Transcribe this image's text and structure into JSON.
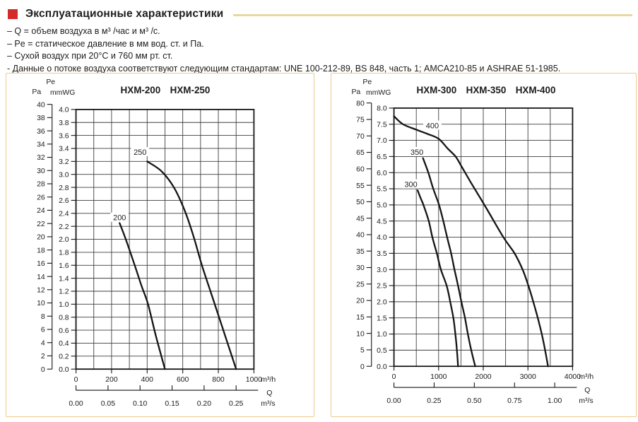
{
  "header": {
    "title": "Эксплуатационные характеристики",
    "accent_color": "#d42a2a",
    "rule_color": "#e9d6a2",
    "bullets": [
      "– Q = объем воздуха в м³ /час и м³ /с.",
      "– Pe = статическое давление в мм вод. ст. и Па.",
      "– Сухой воздух при 20°C и 760 мм рт. ст.",
      "- Данные о потоке воздуха соответствуют следующим стандартам: UNE 100-212-89, BS 848, часть 1; AMCA210-85 и ASHRAE 51-1985."
    ]
  },
  "panel_border_color": "#ecca8d",
  "chart_data": [
    {
      "type": "line",
      "title": "HXM-200  HXM-250",
      "models": [
        "HXM-200",
        "HXM-250"
      ],
      "pe_label": "Pe",
      "pa_label": "Pa",
      "mmwg_label": "mmWG",
      "q_label": "Q",
      "pa_axis": {
        "min": 0,
        "max": 40,
        "step": 2
      },
      "mmwg_axis": {
        "min": 0,
        "max": 4.0,
        "step": 0.2,
        "decimals": 1
      },
      "x_axis": {
        "min": 0,
        "max": 1000,
        "grid_step": 100,
        "label_step": 200,
        "unit": "m³/h"
      },
      "m3s_axis": {
        "values": [
          0,
          0.05,
          0.1,
          0.15,
          0.2,
          0.25
        ],
        "unit": "m³/s",
        "decimals": 2
      },
      "grid": true,
      "curve_color": "#141414",
      "series": [
        {
          "name": "200",
          "label": "200",
          "label_at": [
            245,
            2.33
          ],
          "points": [
            [
              245,
              2.25
            ],
            [
              280,
              2.0
            ],
            [
              330,
              1.6
            ],
            [
              370,
              1.27
            ],
            [
              405,
              1.0
            ],
            [
              450,
              0.5
            ],
            [
              500,
              0
            ]
          ]
        },
        {
          "name": "250",
          "label": "250",
          "label_at": [
            360,
            3.34
          ],
          "points": [
            [
              400,
              3.2
            ],
            [
              480,
              3.05
            ],
            [
              550,
              2.8
            ],
            [
              610,
              2.45
            ],
            [
              660,
              2.05
            ],
            [
              710,
              1.58
            ],
            [
              780,
              1.0
            ],
            [
              840,
              0.5
            ],
            [
              900,
              0
            ]
          ]
        }
      ]
    },
    {
      "type": "line",
      "title": "HXM-300  HXM-350  HXM-400",
      "models": [
        "HXM-300",
        "HXM-350",
        "HXM-400"
      ],
      "pe_label": "Pe",
      "pa_label": "Pa",
      "mmwg_label": "mmWG",
      "q_label": "Q",
      "pa_axis": {
        "min": 0,
        "max": 80,
        "step": 5
      },
      "mmwg_axis": {
        "min": 0,
        "max": 8.0,
        "step": 0.5,
        "decimals": 1
      },
      "x_axis": {
        "min": 0,
        "max": 4000,
        "grid_step": 500,
        "label_step": 1000,
        "unit": "m³/h"
      },
      "m3s_axis": {
        "values": [
          0,
          0.25,
          0.5,
          0.75,
          1.0
        ],
        "unit": "m³/s",
        "decimals": 2
      },
      "grid": true,
      "curve_color": "#141414",
      "series": [
        {
          "name": "300",
          "label": "300",
          "label_at": [
            380,
            5.63
          ],
          "points": [
            [
              530,
              5.45
            ],
            [
              600,
              5.2
            ],
            [
              660,
              5.0
            ],
            [
              780,
              4.5
            ],
            [
              860,
              4.0
            ],
            [
              960,
              3.5
            ],
            [
              1050,
              3.0
            ],
            [
              1180,
              2.5
            ],
            [
              1260,
              2.0
            ],
            [
              1330,
              1.5
            ],
            [
              1375,
              1.0
            ],
            [
              1410,
              0.5
            ],
            [
              1435,
              0
            ]
          ]
        },
        {
          "name": "350",
          "label": "350",
          "label_at": [
            515,
            6.63
          ],
          "points": [
            [
              650,
              6.45
            ],
            [
              770,
              6.0
            ],
            [
              880,
              5.5
            ],
            [
              1010,
              5.0
            ],
            [
              1105,
              4.5
            ],
            [
              1190,
              4.0
            ],
            [
              1280,
              3.5
            ],
            [
              1355,
              3.0
            ],
            [
              1435,
              2.5
            ],
            [
              1510,
              2.0
            ],
            [
              1590,
              1.5
            ],
            [
              1655,
              1.0
            ],
            [
              1730,
              0.5
            ],
            [
              1820,
              0
            ]
          ]
        },
        {
          "name": "400",
          "label": "400",
          "label_at": [
            860,
            7.45
          ],
          "points": [
            [
              0,
              7.75
            ],
            [
              200,
              7.5
            ],
            [
              500,
              7.33
            ],
            [
              750,
              7.2
            ],
            [
              1000,
              7.05
            ],
            [
              1200,
              6.75
            ],
            [
              1380,
              6.5
            ],
            [
              1510,
              6.2
            ],
            [
              1720,
              5.7
            ],
            [
              2090,
              4.85
            ],
            [
              2450,
              4.0
            ],
            [
              2700,
              3.5
            ],
            [
              2880,
              3.0
            ],
            [
              3010,
              2.5
            ],
            [
              3120,
              2.0
            ],
            [
              3220,
              1.5
            ],
            [
              3310,
              1.0
            ],
            [
              3385,
              0.5
            ],
            [
              3450,
              0
            ]
          ]
        }
      ]
    }
  ]
}
